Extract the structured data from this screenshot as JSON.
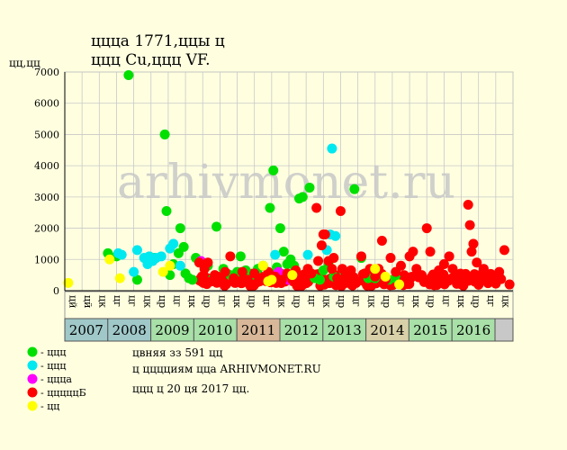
{
  "title": {
    "line1": "ццца 1771,ццы ц",
    "line2": "ццц Cu,ццц VF."
  },
  "chart_data": {
    "type": "scatter",
    "ylabel": "цц,цц",
    "ylim": [
      0,
      7000
    ],
    "yticks": [
      0,
      1000,
      2000,
      3000,
      4000,
      5000,
      6000,
      7000
    ],
    "grid": true,
    "month_labels": [
      "цй",
      "цй",
      "цк",
      "цг",
      "цг",
      "цк",
      "цр",
      "цг",
      "цк",
      "цр",
      "цг",
      "цк",
      "цр",
      "цг",
      "цк",
      "цр",
      "цг",
      "цк",
      "цр",
      "цг",
      "цк",
      "цр",
      "цг",
      "цк",
      "цр",
      "цг",
      "цк",
      "цр",
      "цг",
      "цк"
    ],
    "years": [
      {
        "label": "2007",
        "color": "#a0c8c8"
      },
      {
        "label": "2008",
        "color": "#a0c8c8"
      },
      {
        "label": "2009",
        "color": "#a8e0a8"
      },
      {
        "label": "2010",
        "color": "#a8e0a8"
      },
      {
        "label": "2011",
        "color": "#d8b898"
      },
      {
        "label": "2012",
        "color": "#a8e0a8"
      },
      {
        "label": "2013",
        "color": "#a8e0a8"
      },
      {
        "label": "2014",
        "color": "#d8d0a8"
      },
      {
        "label": "2015",
        "color": "#a8e0a8"
      },
      {
        "label": "2016",
        "color": "#a8e0a8"
      }
    ],
    "last_year_cell_color": "#c8c8c8",
    "series": [
      {
        "name": "- ццц",
        "color": "#00e000",
        "points": [
          [
            3.7,
            6900
          ],
          [
            3.0,
            1100
          ],
          [
            2.5,
            1200
          ],
          [
            4.2,
            350
          ],
          [
            5.2,
            1050
          ],
          [
            5.8,
            5000
          ],
          [
            5.9,
            2550
          ],
          [
            6.1,
            500
          ],
          [
            6.3,
            850
          ],
          [
            6.6,
            1200
          ],
          [
            6.7,
            2000
          ],
          [
            6.9,
            1400
          ],
          [
            7.0,
            550
          ],
          [
            7.2,
            400
          ],
          [
            7.4,
            350
          ],
          [
            7.6,
            1050
          ],
          [
            7.9,
            900
          ],
          [
            8.3,
            800
          ],
          [
            8.6,
            400
          ],
          [
            8.8,
            2050
          ],
          [
            9.2,
            700
          ],
          [
            9.6,
            500
          ],
          [
            10.0,
            600
          ],
          [
            10.2,
            1100
          ],
          [
            10.5,
            650
          ],
          [
            10.7,
            400
          ],
          [
            11.2,
            700
          ],
          [
            11.5,
            800
          ],
          [
            11.9,
            2650
          ],
          [
            12.1,
            3850
          ],
          [
            12.3,
            750
          ],
          [
            12.5,
            2000
          ],
          [
            12.7,
            1250
          ],
          [
            12.9,
            850
          ],
          [
            13.1,
            1000
          ],
          [
            13.3,
            800
          ],
          [
            13.6,
            2950
          ],
          [
            13.8,
            3000
          ],
          [
            14.2,
            3300
          ],
          [
            14.5,
            400
          ],
          [
            14.8,
            350
          ],
          [
            15.0,
            650
          ],
          [
            15.3,
            850
          ],
          [
            15.6,
            450
          ],
          [
            16.2,
            550
          ],
          [
            16.8,
            3250
          ],
          [
            17.2,
            1050
          ],
          [
            17.6,
            400
          ],
          [
            18.0,
            400
          ],
          [
            18.8,
            350
          ],
          [
            19.2,
            400
          ]
        ]
      },
      {
        "name": "- ццц",
        "color": "#00e8f0",
        "points": [
          [
            3.1,
            1200
          ],
          [
            3.3,
            1150
          ],
          [
            4.0,
            600
          ],
          [
            4.2,
            1300
          ],
          [
            4.6,
            1050
          ],
          [
            4.8,
            850
          ],
          [
            4.9,
            1100
          ],
          [
            5.1,
            950
          ],
          [
            5.3,
            1050
          ],
          [
            5.6,
            1100
          ],
          [
            6.1,
            1350
          ],
          [
            6.3,
            1500
          ],
          [
            6.7,
            800
          ],
          [
            12.2,
            1150
          ],
          [
            14.1,
            1150
          ],
          [
            15.2,
            1300
          ],
          [
            15.4,
            1800
          ],
          [
            15.5,
            4550
          ],
          [
            15.7,
            1750
          ]
        ]
      },
      {
        "name": "- ццца",
        "color": "#ff00ff",
        "points": [
          [
            7.9,
            950
          ],
          [
            8.1,
            850
          ],
          [
            12.4,
            600
          ],
          [
            13.0,
            350
          ]
        ]
      },
      {
        "name": "- цццццБ",
        "color": "#ff0000",
        "points": [
          [
            7.8,
            900
          ],
          [
            8.0,
            400
          ],
          [
            8.1,
            700
          ],
          [
            8.3,
            900
          ],
          [
            8.5,
            300
          ],
          [
            8.7,
            500
          ],
          [
            9.0,
            350
          ],
          [
            9.3,
            600
          ],
          [
            9.6,
            1100
          ],
          [
            9.8,
            400
          ],
          [
            10.0,
            300
          ],
          [
            10.3,
            600
          ],
          [
            10.6,
            350
          ],
          [
            10.9,
            200
          ],
          [
            11.0,
            550
          ],
          [
            11.3,
            300
          ],
          [
            11.5,
            350
          ],
          [
            11.8,
            600
          ],
          [
            12.0,
            300
          ],
          [
            12.2,
            450
          ],
          [
            12.6,
            350
          ],
          [
            12.9,
            550
          ],
          [
            13.2,
            350
          ],
          [
            13.4,
            650
          ],
          [
            13.7,
            450
          ],
          [
            13.9,
            300
          ],
          [
            14.1,
            700
          ],
          [
            14.3,
            550
          ],
          [
            14.6,
            2650
          ],
          [
            14.7,
            950
          ],
          [
            14.9,
            1450
          ],
          [
            15.0,
            1800
          ],
          [
            15.1,
            1800
          ],
          [
            15.3,
            950
          ],
          [
            15.5,
            700
          ],
          [
            15.6,
            1050
          ],
          [
            15.8,
            400
          ],
          [
            16.0,
            2550
          ],
          [
            16.1,
            700
          ],
          [
            16.3,
            500
          ],
          [
            16.6,
            650
          ],
          [
            16.9,
            250
          ],
          [
            17.2,
            1100
          ],
          [
            17.4,
            550
          ],
          [
            17.7,
            700
          ],
          [
            18.0,
            450
          ],
          [
            18.2,
            700
          ],
          [
            18.4,
            1600
          ],
          [
            18.6,
            350
          ],
          [
            18.9,
            1050
          ],
          [
            19.2,
            600
          ],
          [
            19.5,
            800
          ],
          [
            19.7,
            350
          ],
          [
            20.0,
            1100
          ],
          [
            20.2,
            1250
          ],
          [
            20.4,
            700
          ],
          [
            20.7,
            500
          ],
          [
            21.0,
            2000
          ],
          [
            21.2,
            1250
          ],
          [
            21.4,
            400
          ],
          [
            21.7,
            650
          ],
          [
            22.0,
            850
          ],
          [
            22.3,
            1100
          ],
          [
            22.5,
            700
          ],
          [
            22.8,
            300
          ],
          [
            23.1,
            200
          ],
          [
            23.4,
            2750
          ],
          [
            23.5,
            2100
          ],
          [
            23.6,
            1250
          ],
          [
            23.7,
            1500
          ],
          [
            23.9,
            900
          ],
          [
            24.1,
            500
          ],
          [
            24.3,
            700
          ],
          [
            24.6,
            300
          ],
          [
            24.9,
            450
          ],
          [
            25.2,
            600
          ],
          [
            25.5,
            1300
          ],
          [
            25.8,
            200
          ]
        ]
      },
      {
        "name": "- цц",
        "color": "#ffff00",
        "points": [
          [
            0.2,
            250
          ],
          [
            2.6,
            1000
          ],
          [
            3.2,
            400
          ],
          [
            5.7,
            600
          ],
          [
            6.1,
            800
          ],
          [
            11.5,
            800
          ],
          [
            11.8,
            300
          ],
          [
            12.0,
            350
          ],
          [
            13.2,
            500
          ],
          [
            18.0,
            700
          ],
          [
            18.6,
            450
          ],
          [
            19.4,
            200
          ]
        ]
      }
    ],
    "dense_band": {
      "x_from": 7.8,
      "x_to": 25.8,
      "y_max": 550,
      "count": 220,
      "color": "#ff0000"
    }
  },
  "info": {
    "line1": "цвняя зз 591 цц",
    "line2": "ц цццциям цца ARHIVMONET.RU",
    "line3": "ццц ц 20 ця 2017 цц."
  },
  "watermark": "arhivmonet.ru"
}
